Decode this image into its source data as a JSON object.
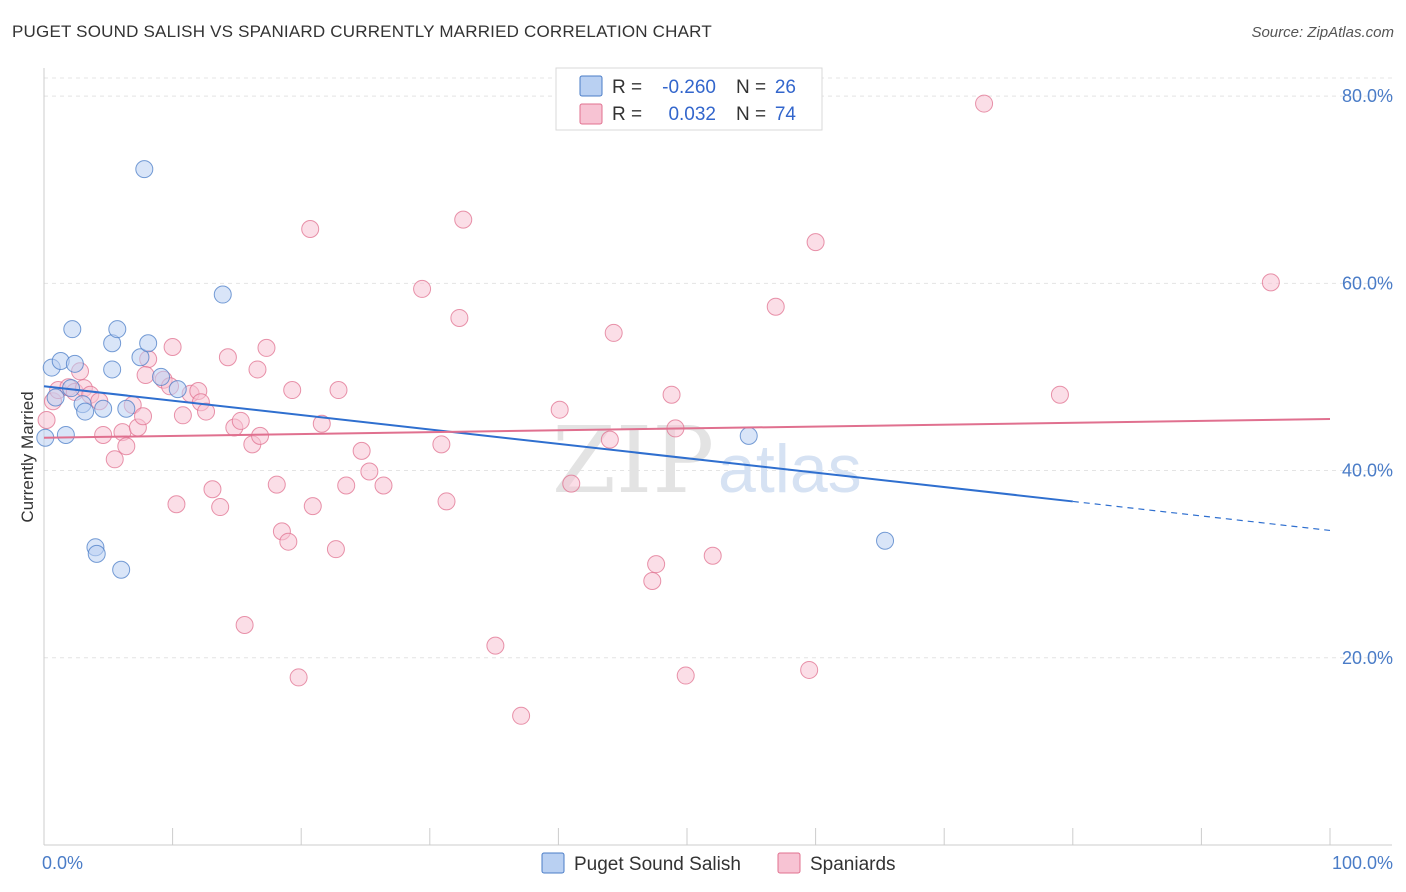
{
  "title": "PUGET SOUND SALISH VS SPANIARD CURRENTLY MARRIED CORRELATION CHART",
  "source": "Source: ZipAtlas.com",
  "watermark": {
    "zip": "ZIP",
    "atlas": "atlas"
  },
  "legend": {
    "r_label": "R =",
    "n_label": "N =",
    "rows": [
      {
        "r": "-0.260",
        "n": "26"
      },
      {
        "r": "0.032",
        "n": "74"
      }
    ]
  },
  "chart_data": {
    "type": "scatter",
    "xlabel": "",
    "ylabel": "Currently Married",
    "xlim": [
      0,
      100
    ],
    "ylim": [
      0,
      83
    ],
    "x_tick_labels": [
      "0.0%",
      "100.0%"
    ],
    "y_ticks": [
      20,
      40,
      60,
      80
    ],
    "y_tick_labels": [
      "20.0%",
      "40.0%",
      "60.0%",
      "80.0%"
    ],
    "grid": true,
    "colors": {
      "blue": "#4a7cc7",
      "blue_fill": "#b9d0f2",
      "pink": "#e0708f",
      "pink_fill": "#f7c3d3",
      "trend_blue": "#2f6fcf",
      "trend_pink": "#e0708f"
    },
    "series": [
      {
        "name": "Puget Sound Salish",
        "color": "blue",
        "points": [
          [
            0.1,
            43.5
          ],
          [
            0.6,
            51.0
          ],
          [
            0.9,
            47.8
          ],
          [
            1.3,
            51.7
          ],
          [
            1.7,
            43.8
          ],
          [
            2.1,
            48.8
          ],
          [
            2.2,
            55.1
          ],
          [
            2.4,
            51.4
          ],
          [
            3.0,
            47.1
          ],
          [
            3.2,
            46.3
          ],
          [
            4.0,
            31.8
          ],
          [
            4.1,
            31.1
          ],
          [
            4.6,
            46.6
          ],
          [
            5.3,
            53.6
          ],
          [
            5.3,
            50.8
          ],
          [
            5.7,
            55.1
          ],
          [
            6.0,
            29.4
          ],
          [
            6.4,
            46.6
          ],
          [
            7.5,
            52.1
          ],
          [
            7.8,
            72.2
          ],
          [
            8.1,
            53.6
          ],
          [
            9.1,
            50.0
          ],
          [
            10.4,
            48.7
          ],
          [
            13.9,
            58.8
          ],
          [
            54.8,
            43.7
          ],
          [
            65.4,
            32.5
          ]
        ]
      },
      {
        "name": "Spaniards",
        "color": "pink",
        "points": [
          [
            0.2,
            45.4
          ],
          [
            0.7,
            47.4
          ],
          [
            1.1,
            48.6
          ],
          [
            1.9,
            48.9
          ],
          [
            2.4,
            48.4
          ],
          [
            2.8,
            50.6
          ],
          [
            3.1,
            48.8
          ],
          [
            3.6,
            48.1
          ],
          [
            4.3,
            47.4
          ],
          [
            4.6,
            43.8
          ],
          [
            5.5,
            41.2
          ],
          [
            6.1,
            44.1
          ],
          [
            6.4,
            42.6
          ],
          [
            6.9,
            47.0
          ],
          [
            7.3,
            44.6
          ],
          [
            7.7,
            45.8
          ],
          [
            8.1,
            51.9
          ],
          [
            9.3,
            49.7
          ],
          [
            9.8,
            49.0
          ],
          [
            10.0,
            53.2
          ],
          [
            10.3,
            36.4
          ],
          [
            10.8,
            45.9
          ],
          [
            11.4,
            48.2
          ],
          [
            12.0,
            48.5
          ],
          [
            12.2,
            47.3
          ],
          [
            12.6,
            46.3
          ],
          [
            13.1,
            38.0
          ],
          [
            13.7,
            36.1
          ],
          [
            14.3,
            52.1
          ],
          [
            14.8,
            44.6
          ],
          [
            15.3,
            45.3
          ],
          [
            15.6,
            23.5
          ],
          [
            16.2,
            42.8
          ],
          [
            16.6,
            50.8
          ],
          [
            16.8,
            43.7
          ],
          [
            17.3,
            53.1
          ],
          [
            18.1,
            38.5
          ],
          [
            18.5,
            33.5
          ],
          [
            19.0,
            32.4
          ],
          [
            19.3,
            48.6
          ],
          [
            19.8,
            17.9
          ],
          [
            20.7,
            65.8
          ],
          [
            20.9,
            36.2
          ],
          [
            21.6,
            45.0
          ],
          [
            22.7,
            31.6
          ],
          [
            22.9,
            48.6
          ],
          [
            23.5,
            38.4
          ],
          [
            24.7,
            42.1
          ],
          [
            25.3,
            39.9
          ],
          [
            26.4,
            38.4
          ],
          [
            29.4,
            59.4
          ],
          [
            30.9,
            42.8
          ],
          [
            31.3,
            36.7
          ],
          [
            32.3,
            56.3
          ],
          [
            32.6,
            66.8
          ],
          [
            35.1,
            21.3
          ],
          [
            37.1,
            13.8
          ],
          [
            40.1,
            46.5
          ],
          [
            41.0,
            38.6
          ],
          [
            44.0,
            43.3
          ],
          [
            44.3,
            54.7
          ],
          [
            47.3,
            28.2
          ],
          [
            47.6,
            30.0
          ],
          [
            48.8,
            48.1
          ],
          [
            49.1,
            44.5
          ],
          [
            49.9,
            18.1
          ],
          [
            52.0,
            30.9
          ],
          [
            56.9,
            57.5
          ],
          [
            59.5,
            18.7
          ],
          [
            60.0,
            64.4
          ],
          [
            73.1,
            79.2
          ],
          [
            79.0,
            48.1
          ],
          [
            95.4,
            60.1
          ],
          [
            7.9,
            50.2
          ]
        ]
      }
    ],
    "trendlines": [
      {
        "series": "Puget Sound Salish",
        "x": [
          0,
          80
        ],
        "y": [
          49.0,
          36.7
        ],
        "dashed_to_x": 100,
        "dashed_y": 33.6
      },
      {
        "series": "Spaniards",
        "x": [
          0,
          100
        ],
        "y": [
          43.5,
          45.5
        ]
      }
    ]
  }
}
